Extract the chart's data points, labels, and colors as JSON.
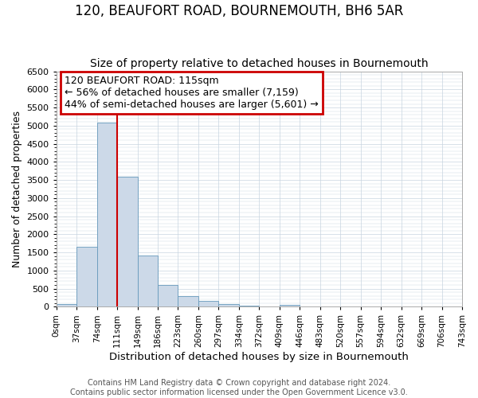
{
  "title": "120, BEAUFORT ROAD, BOURNEMOUTH, BH6 5AR",
  "subtitle": "Size of property relative to detached houses in Bournemouth",
  "xlabel": "Distribution of detached houses by size in Bournemouth",
  "ylabel": "Number of detached properties",
  "bin_edges": [
    0,
    37,
    74,
    111,
    148,
    185,
    222,
    259,
    296,
    333,
    370,
    407,
    444,
    481,
    518,
    555,
    592,
    629,
    666,
    703,
    740
  ],
  "bin_labels": [
    "0sqm",
    "37sqm",
    "74sqm",
    "111sqm",
    "149sqm",
    "186sqm",
    "223sqm",
    "260sqm",
    "297sqm",
    "334sqm",
    "372sqm",
    "409sqm",
    "446sqm",
    "483sqm",
    "520sqm",
    "557sqm",
    "594sqm",
    "632sqm",
    "669sqm",
    "706sqm",
    "743sqm"
  ],
  "counts": [
    70,
    1650,
    5080,
    3580,
    1420,
    610,
    300,
    155,
    75,
    25,
    10,
    55,
    0,
    0,
    0,
    0,
    0,
    0,
    0,
    0
  ],
  "bar_color": "#ccd9e8",
  "bar_edge_color": "#6699bb",
  "property_line_x": 111,
  "property_line_color": "#cc0000",
  "ylim": [
    0,
    6500
  ],
  "yticks": [
    0,
    500,
    1000,
    1500,
    2000,
    2500,
    3000,
    3500,
    4000,
    4500,
    5000,
    5500,
    6000,
    6500
  ],
  "annotation_title": "120 BEAUFORT ROAD: 115sqm",
  "annotation_line1": "← 56% of detached houses are smaller (7,159)",
  "annotation_line2": "44% of semi-detached houses are larger (5,601) →",
  "annotation_box_color": "#cc0000",
  "footer1": "Contains HM Land Registry data © Crown copyright and database right 2024.",
  "footer2": "Contains public sector information licensed under the Open Government Licence v3.0.",
  "background_color": "#ffffff",
  "plot_background": "#ffffff",
  "grid_color": "#c8d4e0",
  "title_fontsize": 12,
  "subtitle_fontsize": 10,
  "xlabel_fontsize": 9.5,
  "ylabel_fontsize": 9,
  "annotation_fontsize": 9,
  "footer_fontsize": 7
}
